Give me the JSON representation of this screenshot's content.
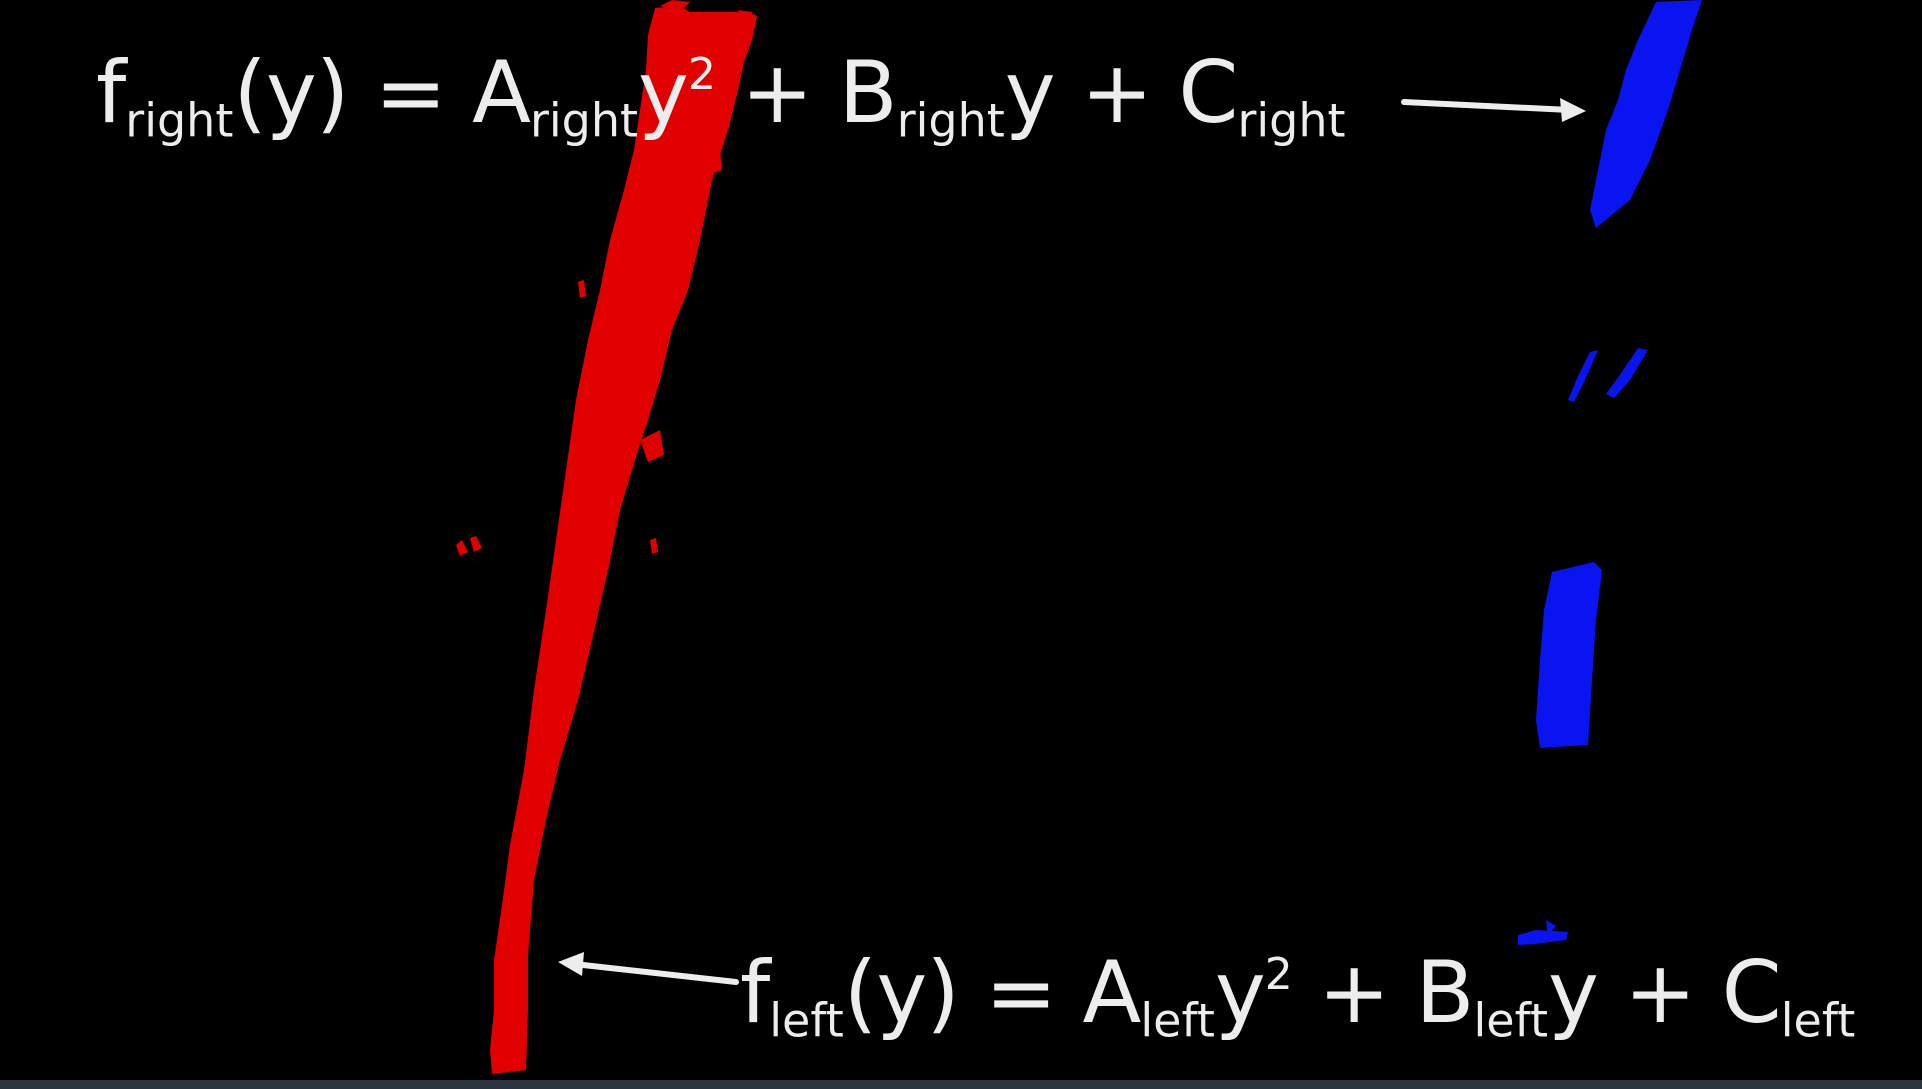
{
  "diagram": {
    "background_color": "#000000",
    "left_lane_color": "#e00000",
    "right_lane_color": "#0a14f0",
    "text_color": "#ededed",
    "right_equation": {
      "f": "f",
      "f_sub": "right",
      "lhs_rest": "(y) = ",
      "a": "A",
      "a_sub": "right",
      "y1": "y",
      "y1_sup": "2",
      "plus_b": " + B",
      "b_sub": "right",
      "y2": "y",
      "plus_c": " + C",
      "c_sub": "right"
    },
    "left_equation": {
      "f": "f",
      "f_sub": "left",
      "lhs_rest": "(y) = ",
      "a": "A",
      "a_sub": "left",
      "y1": "y",
      "y1_sup": "2",
      "plus_b": " + B",
      "b_sub": "left",
      "y2": "y",
      "plus_c": " + C",
      "c_sub": "left"
    }
  }
}
